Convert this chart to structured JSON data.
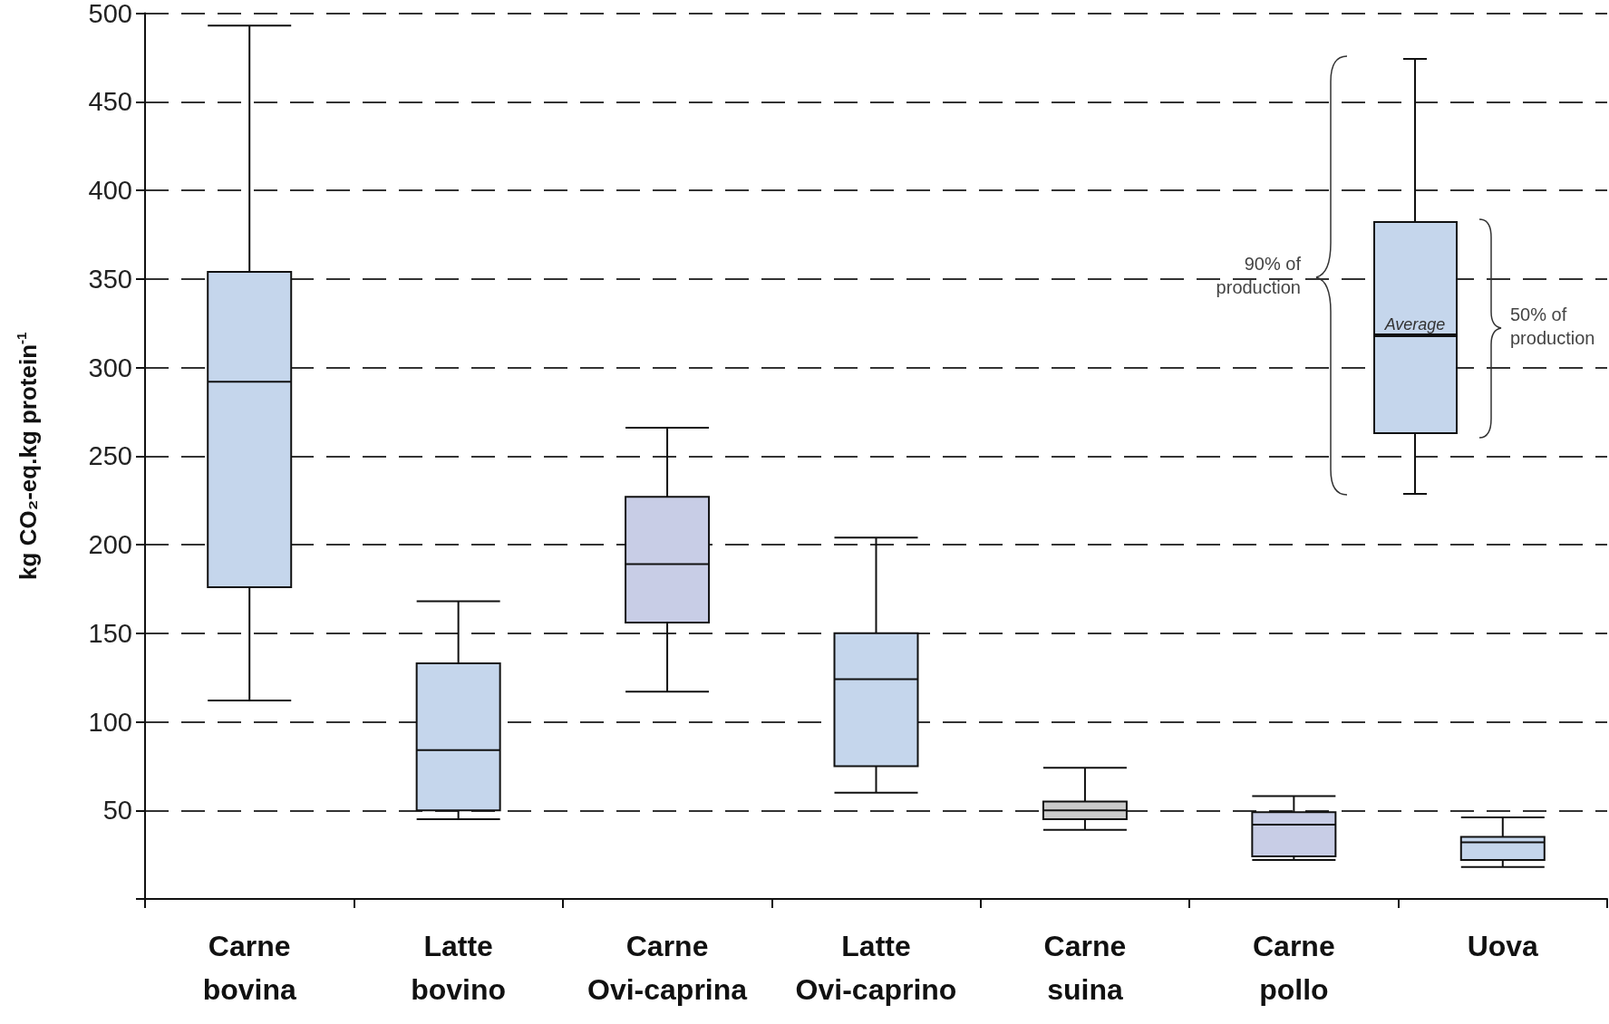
{
  "chart_data": {
    "type": "box",
    "ylabel": "kg CO₂-eq.kg protein$^{-1}$",
    "categories": [
      "Carne bovina",
      "Latte bovino",
      "Carne Ovi-caprina",
      "Latte Ovi-caprino",
      "Carne suina",
      "Carne pollo",
      "Uova"
    ],
    "boxes": [
      {
        "low": 112,
        "q1": 176,
        "median": 292,
        "q3": 354,
        "high": 493
      },
      {
        "low": 45,
        "q1": 50,
        "median": 84,
        "q3": 133,
        "high": 168
      },
      {
        "low": 117,
        "q1": 156,
        "median": 189,
        "q3": 227,
        "high": 266
      },
      {
        "low": 60,
        "q1": 75,
        "median": 124,
        "q3": 150,
        "high": 204
      },
      {
        "low": 39,
        "q1": 45,
        "median": 50,
        "q3": 55,
        "high": 74
      },
      {
        "low": 22,
        "q1": 24,
        "median": 42,
        "q3": 49,
        "high": 58
      },
      {
        "low": 18,
        "q1": 22,
        "median": 32,
        "q3": 35,
        "high": 46
      }
    ],
    "colors": [
      "#c5d6ec",
      "#c5d6ec",
      "#c8cde6",
      "#c5d6ec",
      "#cbcbcb",
      "#c8cde6",
      "#c5d6ec"
    ],
    "ylim": [
      0,
      500
    ],
    "yticks": [
      {
        "value": 0,
        "label": null
      },
      50,
      100,
      150,
      200,
      250,
      300,
      350,
      400,
      450,
      500
    ],
    "grid": "y",
    "annotations": [
      "90% of production",
      "50% of production",
      "Average"
    ]
  }
}
